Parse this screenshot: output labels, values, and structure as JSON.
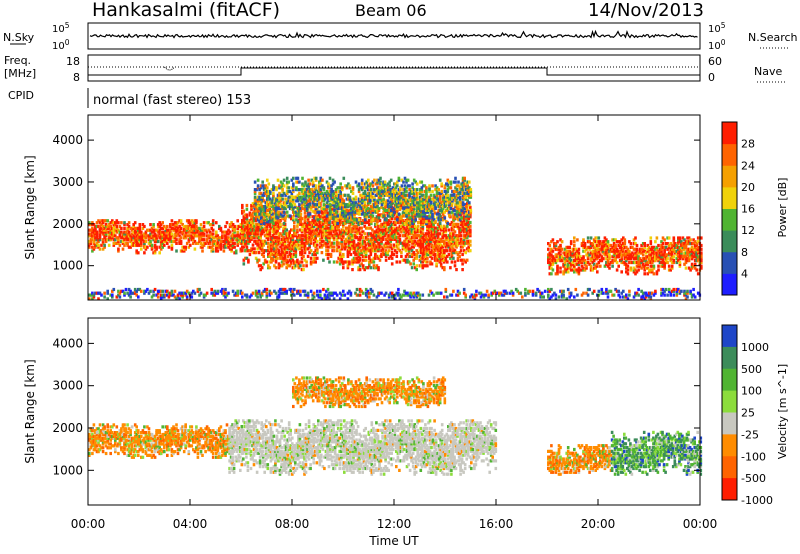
{
  "header": {
    "station": "Hankasalmi (fitACF)",
    "beam": "Beam 06",
    "date": "14/Nov/2013"
  },
  "top_panels": {
    "nsky_label": "N.Sky",
    "nsky_ticks": [
      "10^5",
      "10^0"
    ],
    "nsearch_label": "N.Search",
    "nsearch_ticks": [
      "10^5",
      "10^0"
    ],
    "freq_label": "Freq.",
    "freq_unit": "[MHz]",
    "freq_ticks": [
      "18",
      "8"
    ],
    "nave_label": "Nave",
    "nave_ticks": [
      "60",
      "0"
    ],
    "cpid_label": "CPID",
    "cpid_value": "normal (fast stereo) 153"
  },
  "chart_data": [
    {
      "type": "heatmap",
      "title": "",
      "xlabel": "Time UT",
      "ylabel": "Slant Range [km]",
      "x_ticks": [
        "00:00",
        "04:00",
        "08:00",
        "12:00",
        "16:00",
        "20:00",
        "00:00"
      ],
      "xlim_hours": [
        0,
        24
      ],
      "y_ticks": [
        "1000",
        "2000",
        "3000",
        "4000"
      ],
      "ylim_km": [
        180,
        4600
      ],
      "colorbar": {
        "label": "Power [dB]",
        "ticks": [
          "4",
          "8",
          "12",
          "16",
          "20",
          "24",
          "28"
        ],
        "range": [
          0,
          32
        ],
        "colors": [
          "#1e1eff",
          "#2850b4",
          "#3a8c5a",
          "#50b432",
          "#f0d20a",
          "#f5a000",
          "#ff6400",
          "#ff1e00"
        ]
      },
      "regions": [
        {
          "t": [
            0.0,
            6.0
          ],
          "r": [
            1300,
            2100
          ],
          "level": "high"
        },
        {
          "t": [
            6.0,
            15.0
          ],
          "r": [
            900,
            2500
          ],
          "level": "high"
        },
        {
          "t": [
            6.5,
            15.0
          ],
          "r": [
            2000,
            3100
          ],
          "level": "medium"
        },
        {
          "t": [
            18.0,
            24.0
          ],
          "r": [
            800,
            1700
          ],
          "level": "high"
        },
        {
          "t": [
            0.0,
            24.0
          ],
          "r": [
            200,
            450
          ],
          "level": "low"
        }
      ]
    },
    {
      "type": "heatmap",
      "title": "",
      "xlabel": "Time UT",
      "ylabel": "Slant Range [km]",
      "x_ticks": [
        "00:00",
        "04:00",
        "08:00",
        "12:00",
        "16:00",
        "20:00",
        "00:00"
      ],
      "xlim_hours": [
        0,
        24
      ],
      "y_ticks": [
        "1000",
        "2000",
        "3000",
        "4000"
      ],
      "ylim_km": [
        180,
        4600
      ],
      "colorbar": {
        "label": "Velocity [m s^-1]",
        "ticks": [
          "1000",
          "500",
          "100",
          "25",
          "-25",
          "-100",
          "-500",
          "-1000"
        ],
        "colors": [
          "#1e46c8",
          "#3c8c5a",
          "#50b432",
          "#8cdc3c",
          "#c8c8c0",
          "#ff8c00",
          "#ff6400",
          "#ff1e00"
        ]
      },
      "regions": [
        {
          "t": [
            0.0,
            5.5
          ],
          "r": [
            1300,
            2100
          ],
          "level": "negative"
        },
        {
          "t": [
            5.5,
            16.0
          ],
          "r": [
            900,
            2200
          ],
          "level": "near-zero"
        },
        {
          "t": [
            8.0,
            14.0
          ],
          "r": [
            2500,
            3200
          ],
          "level": "negative"
        },
        {
          "t": [
            18.0,
            20.5
          ],
          "r": [
            900,
            1600
          ],
          "level": "negative"
        },
        {
          "t": [
            20.5,
            24.0
          ],
          "r": [
            900,
            1900
          ],
          "level": "positive"
        }
      ]
    }
  ]
}
